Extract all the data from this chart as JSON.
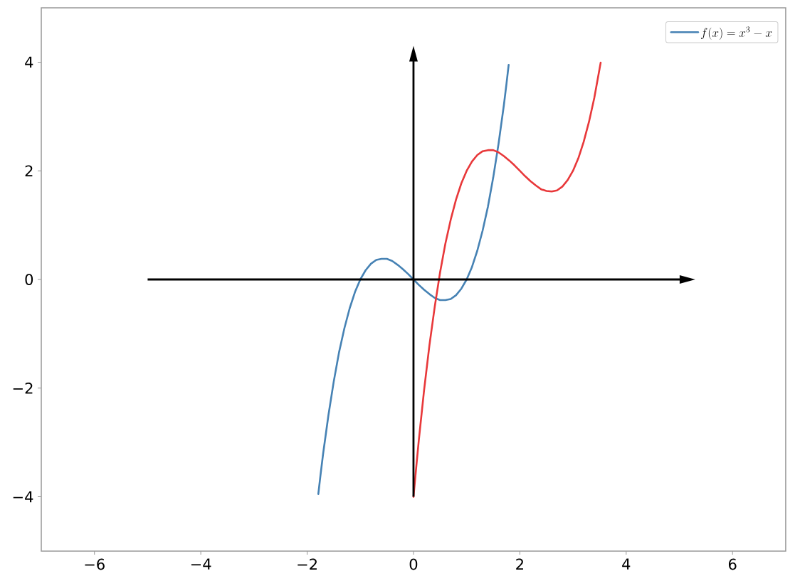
{
  "chart_data": {
    "type": "line",
    "xlim": [
      -7,
      7
    ],
    "ylim": [
      -5,
      5
    ],
    "xticks": [
      {
        "value": -6,
        "label": "−6"
      },
      {
        "value": -4,
        "label": "−4"
      },
      {
        "value": -2,
        "label": "−2"
      },
      0,
      2,
      4,
      6
    ],
    "yticks": [
      {
        "value": -4,
        "label": "−4"
      },
      {
        "value": -2,
        "label": "−2"
      },
      0,
      2,
      4
    ],
    "legend": "top right",
    "series": [
      {
        "name": "f(x) = x^{3} - x",
        "color": "#4682b4",
        "x": [
          -1.79,
          -1.75,
          -1.7,
          -1.6,
          -1.5,
          -1.4,
          -1.3,
          -1.2,
          -1.1,
          -1.0,
          -0.9,
          -0.8,
          -0.7,
          -0.6,
          -0.5,
          -0.4,
          -0.3,
          -0.2,
          -0.1,
          0,
          0.1,
          0.2,
          0.3,
          0.4,
          0.5,
          0.6,
          0.7,
          0.8,
          0.9,
          1.0,
          1.1,
          1.2,
          1.3,
          1.4,
          1.5,
          1.6,
          1.7,
          1.75,
          1.79
        ],
        "values": [
          -3.95,
          -3.61,
          -3.21,
          -2.5,
          -1.88,
          -1.34,
          -0.9,
          -0.53,
          -0.23,
          0,
          0.17,
          0.29,
          0.36,
          0.38,
          0.38,
          0.34,
          0.27,
          0.19,
          0.1,
          0,
          -0.1,
          -0.19,
          -0.27,
          -0.34,
          -0.38,
          -0.38,
          -0.36,
          -0.29,
          -0.17,
          0,
          0.23,
          0.53,
          0.9,
          1.34,
          1.88,
          2.5,
          3.21,
          3.61,
          3.95
        ]
      },
      {
        "color": "#e8383a",
        "x": [
          0,
          0.05,
          0.1,
          0.2,
          0.3,
          0.4,
          0.5,
          0.6,
          0.7,
          0.8,
          0.9,
          1.0,
          1.1,
          1.2,
          1.3,
          1.4,
          1.5,
          1.6,
          1.7,
          1.8,
          1.9,
          2.0,
          2.1,
          2.2,
          2.3,
          2.4,
          2.5,
          2.6,
          2.7,
          2.8,
          2.9,
          3.0,
          3.1,
          3.2,
          3.3,
          3.4,
          3.5,
          3.52
        ],
        "values": [
          -4,
          -3.47,
          -2.96,
          -2.03,
          -1.21,
          -0.5,
          0.13,
          0.66,
          1.1,
          1.47,
          1.77,
          2,
          2.17,
          2.29,
          2.36,
          2.38,
          2.38,
          2.34,
          2.27,
          2.19,
          2.1,
          2,
          1.9,
          1.81,
          1.73,
          1.66,
          1.63,
          1.62,
          1.64,
          1.71,
          1.83,
          2,
          2.23,
          2.53,
          2.9,
          3.34,
          3.88,
          3.99
        ]
      }
    ]
  }
}
